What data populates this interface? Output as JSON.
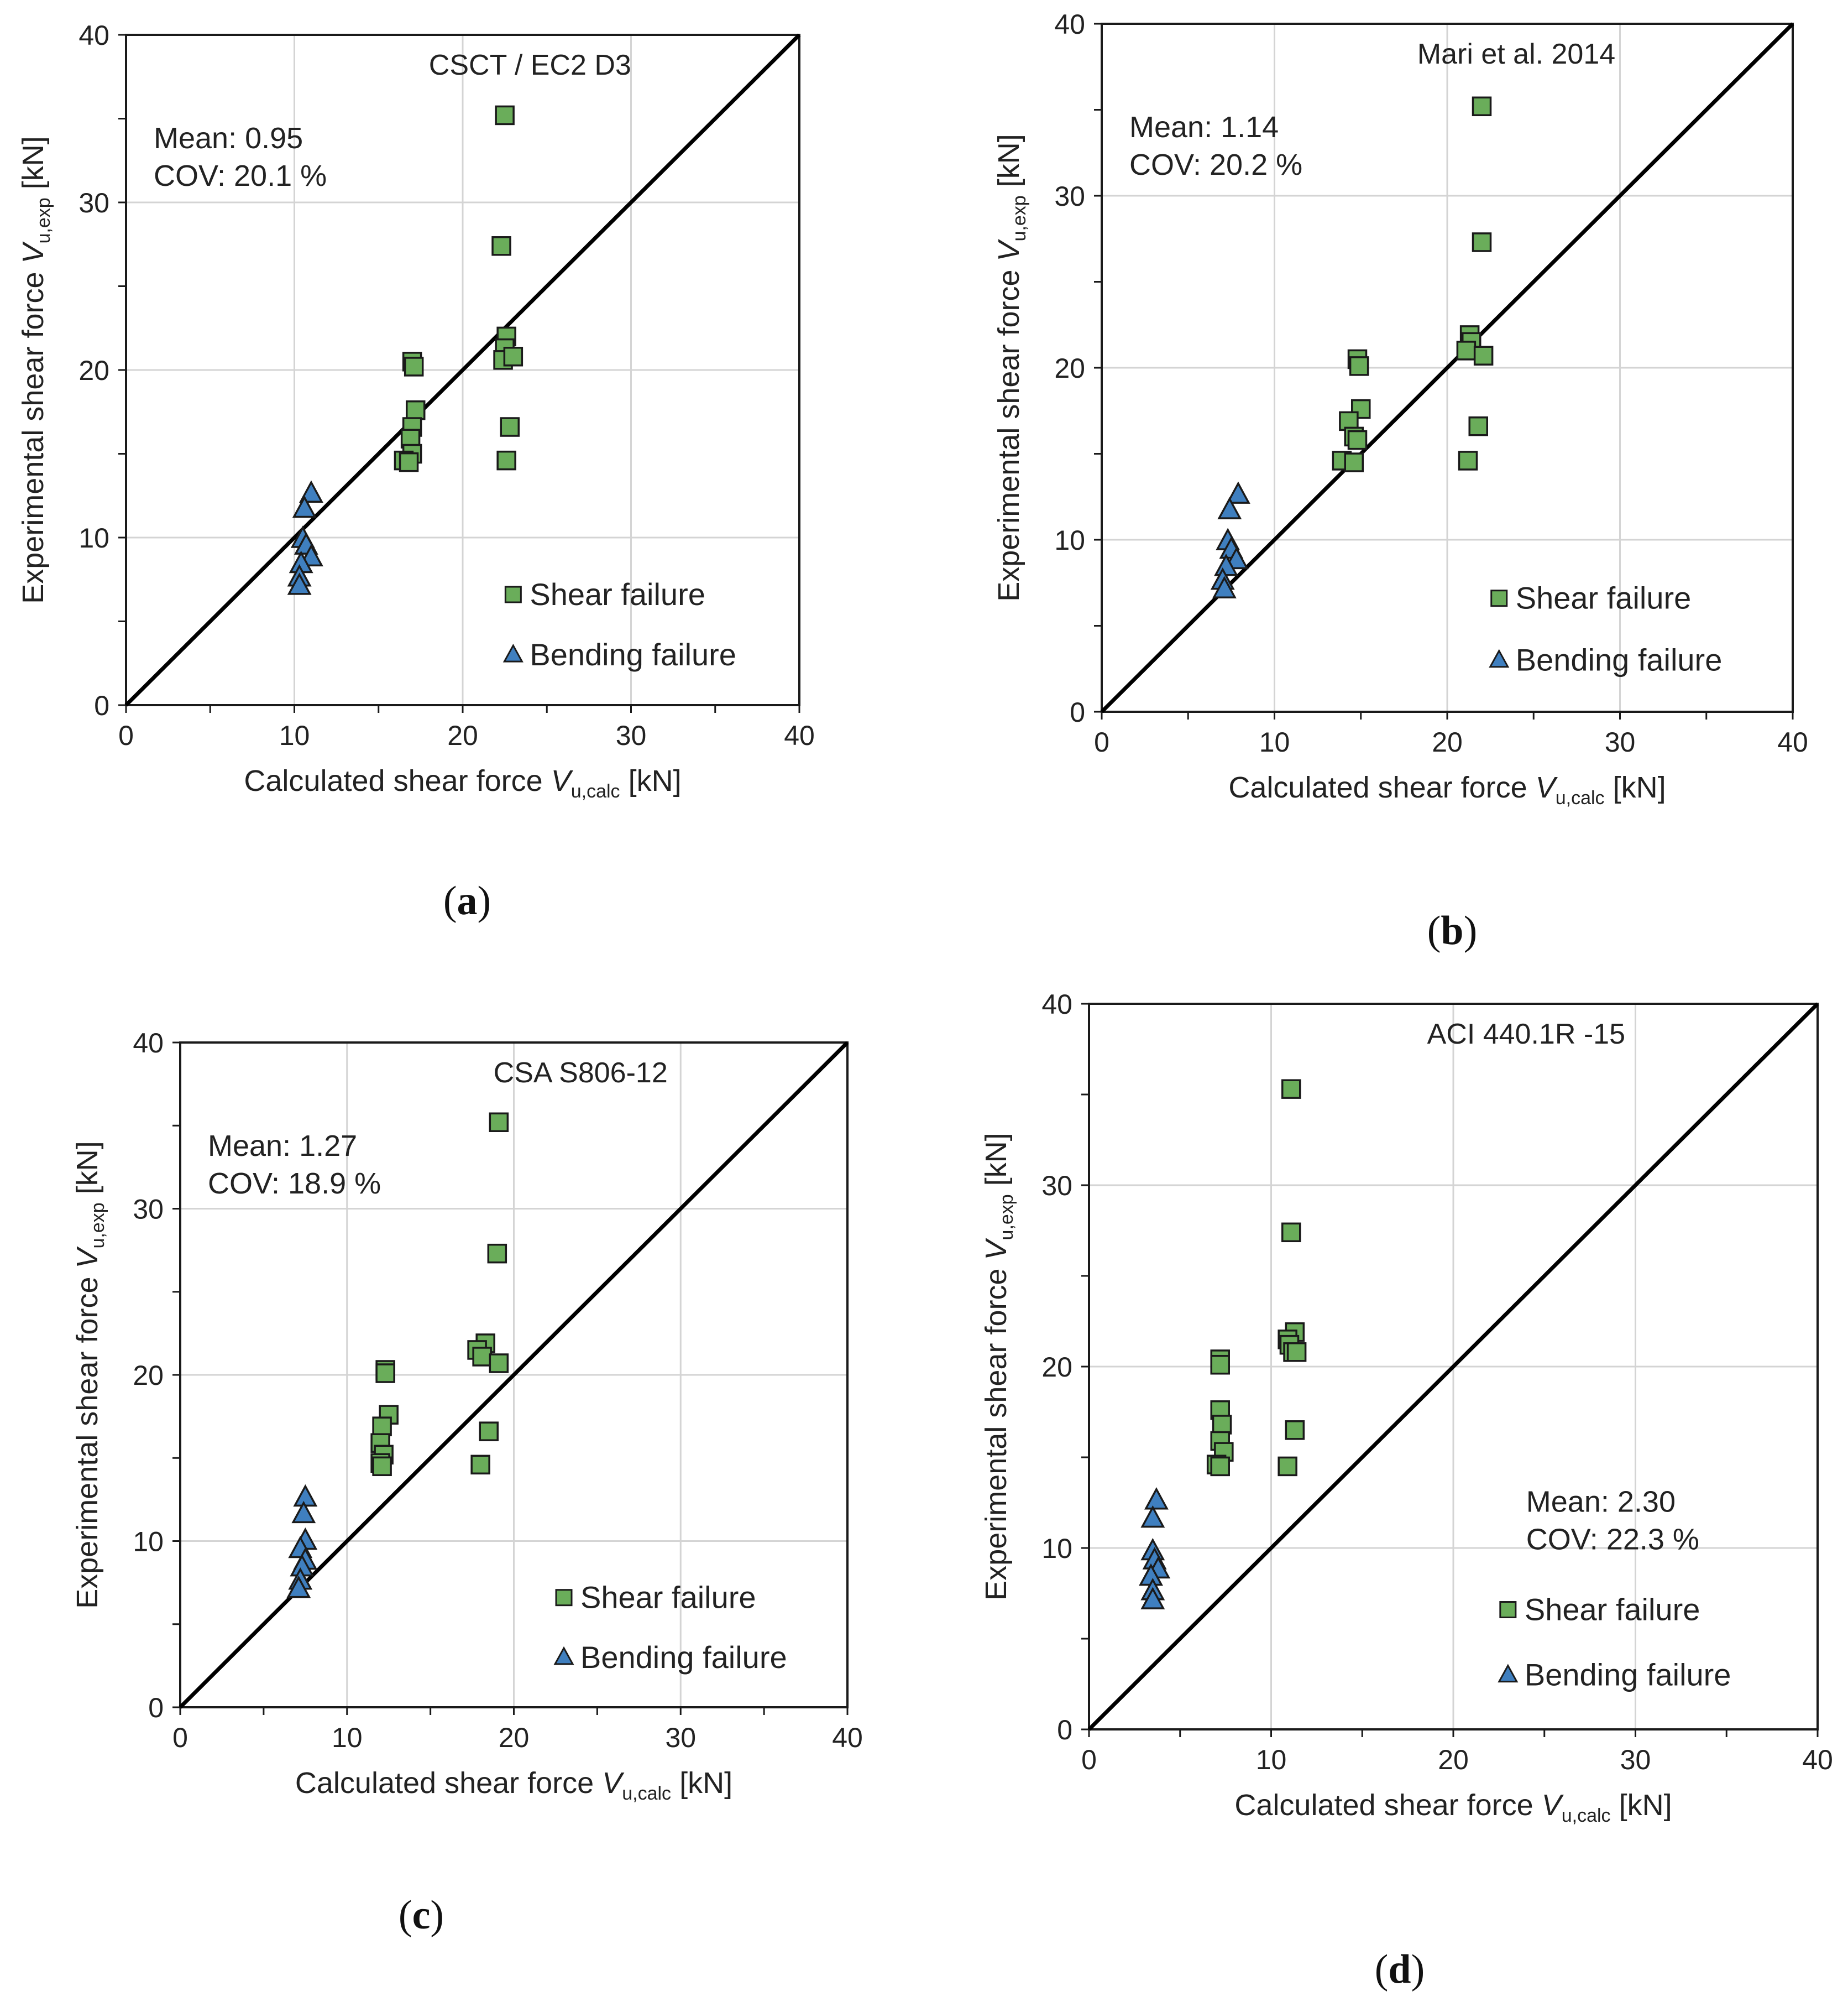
{
  "colors": {
    "shear": "#6aad5a",
    "bending": "#3f7fbf",
    "marker_edge": "#1a1a1a",
    "grid": "#d4d4d4",
    "axis": "#1a1a1a"
  },
  "chart_data": [
    {
      "type": "scatter",
      "panel": "a",
      "caption": "a",
      "title": "CSCT / EC2 D3",
      "mean_label": "Mean: 0.95",
      "cov_label": "COV: 20.1 %",
      "stats_position": "top-left",
      "xlabel_main": "Calculated shear force ",
      "xlabel_var": "V",
      "xlabel_sub": "u,calc",
      "xlabel_unit": " [kN]",
      "ylabel_main": "Experimental shear force ",
      "ylabel_var": "V",
      "ylabel_sub": "u,exp",
      "ylabel_unit": " [kN]",
      "xlim": [
        0,
        40
      ],
      "ylim": [
        0,
        40
      ],
      "ticks": [
        0,
        10,
        20,
        30,
        40
      ],
      "tick_labels": [
        "0",
        "10",
        "20",
        "30",
        "40"
      ],
      "legend": [
        "Shear failure",
        "Bending failure"
      ],
      "legend_position": "bottom-right",
      "reference_line": "y = x",
      "series": [
        {
          "name": "Shear failure",
          "marker": "square",
          "x": [
            22.5,
            22.3,
            22.6,
            22.5,
            22.4,
            23.0,
            17.0,
            17.1,
            17.2,
            17.0,
            16.9,
            17.0,
            16.5,
            16.8,
            22.8,
            22.6
          ],
          "y": [
            35.2,
            27.4,
            22.0,
            21.3,
            20.6,
            20.8,
            20.5,
            20.2,
            17.6,
            16.6,
            15.9,
            15.0,
            14.6,
            14.5,
            16.6,
            14.6
          ]
        },
        {
          "name": "Bending failure",
          "marker": "triangle",
          "x": [
            11.0,
            10.6,
            10.5,
            10.7,
            11.0,
            10.4,
            10.3,
            10.3
          ],
          "y": [
            12.6,
            11.7,
            9.9,
            9.5,
            8.8,
            8.4,
            7.6,
            7.1
          ]
        }
      ]
    },
    {
      "type": "scatter",
      "panel": "b",
      "caption": "b",
      "title": "Mari et al. 2014",
      "mean_label": "Mean: 1.14",
      "cov_label": "COV: 20.2 %",
      "stats_position": "top-left",
      "xlabel_main": "Calculated shear force ",
      "xlabel_var": "V",
      "xlabel_sub": "u,calc",
      "xlabel_unit": " [kN]",
      "ylabel_main": "Experimental shear force ",
      "ylabel_var": "V",
      "ylabel_sub": "u,exp",
      "ylabel_unit": " [kN]",
      "xlim": [
        0,
        40
      ],
      "ylim": [
        0,
        40
      ],
      "ticks": [
        0,
        10,
        20,
        30,
        40
      ],
      "tick_labels": [
        "0",
        "10",
        "20",
        "30",
        "40"
      ],
      "legend": [
        "Shear failure",
        "Bending failure"
      ],
      "legend_position": "bottom-right",
      "reference_line": "y = x",
      "series": [
        {
          "name": "Shear failure",
          "marker": "square",
          "x": [
            22.0,
            22.0,
            21.3,
            21.4,
            21.1,
            22.1,
            14.8,
            14.9,
            15.0,
            14.3,
            14.6,
            14.8,
            13.9,
            14.6,
            21.8,
            21.2
          ],
          "y": [
            35.2,
            27.3,
            21.9,
            21.5,
            21.0,
            20.7,
            20.5,
            20.1,
            17.6,
            16.9,
            16.0,
            15.8,
            14.6,
            14.5,
            16.6,
            14.6
          ]
        },
        {
          "name": "Bending failure",
          "marker": "triangle",
          "x": [
            7.9,
            7.4,
            7.3,
            7.5,
            7.8,
            7.2,
            7.0,
            7.1
          ],
          "y": [
            12.6,
            11.7,
            9.9,
            9.4,
            8.8,
            8.4,
            7.6,
            7.1
          ]
        }
      ]
    },
    {
      "type": "scatter",
      "panel": "c",
      "caption": "c",
      "title": "CSA S806-12",
      "mean_label": "Mean: 1.27",
      "cov_label": "COV: 18.9 %",
      "stats_position": "top-left",
      "xlabel_main": "Calculated shear force ",
      "xlabel_var": "V",
      "xlabel_sub": "u,calc",
      "xlabel_unit": " [kN]",
      "ylabel_main": "Experimental shear force ",
      "ylabel_var": "V",
      "ylabel_sub": "u,exp",
      "ylabel_unit": " [kN]",
      "xlim": [
        0,
        40
      ],
      "ylim": [
        0,
        40
      ],
      "ticks": [
        0,
        10,
        20,
        30,
        40
      ],
      "tick_labels": [
        "0",
        "10",
        "20",
        "30",
        "40"
      ],
      "legend": [
        "Shear failure",
        "Bending failure"
      ],
      "legend_position": "bottom-right",
      "reference_line": "y = x",
      "series": [
        {
          "name": "Shear failure",
          "marker": "square",
          "x": [
            19.1,
            19.0,
            18.3,
            17.8,
            18.1,
            19.1,
            12.3,
            12.3,
            12.5,
            12.1,
            12.0,
            12.2,
            12.0,
            12.1,
            18.5,
            18.0
          ],
          "y": [
            35.2,
            27.3,
            21.9,
            21.5,
            21.1,
            20.7,
            20.3,
            20.1,
            17.6,
            16.9,
            15.9,
            15.2,
            14.7,
            14.5,
            16.6,
            14.6
          ]
        },
        {
          "name": "Bending failure",
          "marker": "triangle",
          "x": [
            7.5,
            7.4,
            7.5,
            7.2,
            7.5,
            7.3,
            7.2,
            7.1
          ],
          "y": [
            12.6,
            11.6,
            10.0,
            9.5,
            8.8,
            8.4,
            7.6,
            7.1
          ]
        }
      ]
    },
    {
      "type": "scatter",
      "panel": "d",
      "caption": "d",
      "title": "ACI 440.1R -15",
      "mean_label": "Mean: 2.30",
      "cov_label": "COV: 22.3 %",
      "stats_position": "right",
      "xlabel_main": "Calculated shear force ",
      "xlabel_var": "V",
      "xlabel_sub": "u,calc",
      "xlabel_unit": " [kN]",
      "ylabel_main": "Experimental shear force ",
      "ylabel_var": "V",
      "ylabel_sub": "u,exp",
      "ylabel_unit": " [kN]",
      "xlim": [
        0,
        40
      ],
      "ylim": [
        0,
        40
      ],
      "ticks": [
        0,
        10,
        20,
        30,
        40
      ],
      "tick_labels": [
        "0",
        "10",
        "20",
        "30",
        "40"
      ],
      "legend": [
        "Shear failure",
        "Bending failure"
      ],
      "legend_position": "bottom-right",
      "reference_line": "y = x",
      "series": [
        {
          "name": "Shear failure",
          "marker": "square",
          "x": [
            11.1,
            11.1,
            11.3,
            10.9,
            11.0,
            11.2,
            11.4,
            7.2,
            7.2,
            7.2,
            7.3,
            7.2,
            7.4,
            7.0,
            7.2,
            11.3,
            10.9
          ],
          "y": [
            35.3,
            27.4,
            21.9,
            21.5,
            21.2,
            20.8,
            20.8,
            20.4,
            20.1,
            17.6,
            16.8,
            15.9,
            15.3,
            14.6,
            14.5,
            16.5,
            14.5
          ]
        },
        {
          "name": "Bending failure",
          "marker": "triangle",
          "x": [
            3.7,
            3.5,
            3.5,
            3.6,
            3.8,
            3.4,
            3.5,
            3.5
          ],
          "y": [
            12.6,
            11.6,
            9.8,
            9.3,
            8.8,
            8.4,
            7.6,
            7.1
          ]
        }
      ]
    }
  ]
}
